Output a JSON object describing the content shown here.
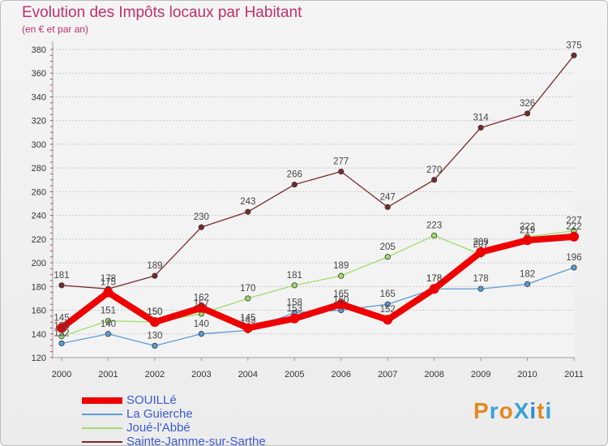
{
  "header": {
    "title": "Evolution des Impôts locaux par Habitant",
    "subtitle": "(en € et par an)"
  },
  "logo": {
    "text": "ProXiti",
    "colors": [
      "#e08a1e",
      "#3aa0d8",
      "#e08a1e",
      "#3aa0d8",
      "#2e8fce",
      "#e08a1e",
      "#3aa0d8"
    ]
  },
  "chart_data": {
    "type": "line",
    "x": [
      2000,
      2001,
      2002,
      2003,
      2004,
      2005,
      2006,
      2007,
      2008,
      2009,
      2010,
      2011
    ],
    "ylim": [
      120,
      380
    ],
    "yticks": [
      120,
      140,
      160,
      180,
      200,
      220,
      240,
      260,
      280,
      300,
      320,
      340,
      360,
      380
    ],
    "grid": "horizontal-dashed",
    "legend_position": "bottom-left",
    "series": [
      {
        "name": "SOUILLé",
        "color": "#ee0000",
        "emphasis": true,
        "values": [
          145,
          175,
          150,
          162,
          145,
          153,
          165,
          152,
          178,
          209,
          219,
          222
        ],
        "labels": [
          "145",
          "175",
          "150",
          "162",
          "145",
          "153",
          "165",
          "152",
          "178",
          "209",
          "219",
          "222"
        ]
      },
      {
        "name": "La Guierche",
        "color": "#5a9bd5",
        "emphasis": false,
        "values": [
          132,
          140,
          130,
          140,
          143,
          158,
          160,
          165,
          178,
          178,
          182,
          196
        ],
        "labels": [
          "132",
          "140",
          "130",
          "140",
          "143",
          "158",
          "160",
          "165",
          "178",
          "178",
          "182",
          "196"
        ]
      },
      {
        "name": "Joué-l'Abbé",
        "color": "#9fdd6b",
        "emphasis": false,
        "values": [
          138,
          151,
          150,
          157,
          170,
          181,
          189,
          205,
          223,
          207,
          222,
          227
        ],
        "labels": [
          "138",
          "151",
          "150",
          "157",
          "170",
          "181",
          "189",
          "205",
          "223",
          "207",
          "222",
          "227"
        ]
      },
      {
        "name": "Sainte-Jamme-sur-Sarthe",
        "color": "#7a2a2a",
        "emphasis": false,
        "values": [
          181,
          178,
          189,
          230,
          243,
          266,
          277,
          247,
          270,
          314,
          326,
          375
        ],
        "labels": [
          "181",
          "178",
          "189",
          "230",
          "243",
          "266",
          "277",
          "247",
          "270",
          "314",
          "326",
          "375"
        ]
      }
    ]
  }
}
